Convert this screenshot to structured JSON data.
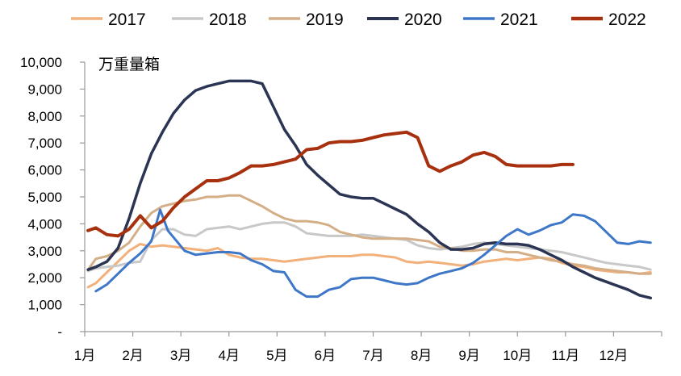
{
  "chart_data": {
    "type": "line",
    "unit_label": "万重量箱",
    "ylim": [
      0,
      10000
    ],
    "y_ticks": [
      "-",
      "1,000",
      "2,000",
      "3,000",
      "4,000",
      "5,000",
      "6,000",
      "7,000",
      "8,000",
      "9,000",
      "10,000"
    ],
    "x_labels": [
      "1月",
      "2月",
      "3月",
      "4月",
      "5月",
      "6月",
      "7月",
      "8月",
      "9月",
      "10月",
      "11月",
      "12月"
    ],
    "xlim_weeks": [
      0,
      52
    ],
    "grid": false,
    "legend_position": "top",
    "series": [
      {
        "name": "2017",
        "color": "#F2B07B",
        "width": 3,
        "points": [
          [
            0.3,
            1650
          ],
          [
            1,
            1800
          ],
          [
            2,
            2200
          ],
          [
            3,
            2600
          ],
          [
            4,
            3000
          ],
          [
            5,
            3250
          ],
          [
            6,
            3150
          ],
          [
            7,
            3200
          ],
          [
            8,
            3150
          ],
          [
            9,
            3100
          ],
          [
            10,
            3050
          ],
          [
            11,
            3000
          ],
          [
            12,
            3100
          ],
          [
            13,
            2850
          ],
          [
            14,
            2750
          ],
          [
            15,
            2700
          ],
          [
            16,
            2700
          ],
          [
            17,
            2650
          ],
          [
            18,
            2600
          ],
          [
            19,
            2650
          ],
          [
            20,
            2700
          ],
          [
            21,
            2750
          ],
          [
            22,
            2800
          ],
          [
            23,
            2800
          ],
          [
            24,
            2800
          ],
          [
            25,
            2850
          ],
          [
            26,
            2850
          ],
          [
            27,
            2800
          ],
          [
            28,
            2750
          ],
          [
            29,
            2600
          ],
          [
            30,
            2550
          ],
          [
            31,
            2600
          ],
          [
            32,
            2550
          ],
          [
            33,
            2500
          ],
          [
            34,
            2450
          ],
          [
            35,
            2500
          ],
          [
            36,
            2600
          ],
          [
            37,
            2650
          ],
          [
            38,
            2700
          ],
          [
            39,
            2650
          ],
          [
            40,
            2700
          ],
          [
            41,
            2750
          ],
          [
            42,
            2700
          ],
          [
            43,
            2550
          ],
          [
            44,
            2450
          ],
          [
            45,
            2400
          ],
          [
            46,
            2300
          ],
          [
            47,
            2250
          ],
          [
            48,
            2200
          ],
          [
            49,
            2200
          ],
          [
            50,
            2150
          ],
          [
            51,
            2200
          ]
        ]
      },
      {
        "name": "2018",
        "color": "#C8C8C8",
        "width": 3,
        "points": [
          [
            0.3,
            2250
          ],
          [
            1,
            2350
          ],
          [
            2,
            2400
          ],
          [
            3,
            2450
          ],
          [
            4,
            2550
          ],
          [
            5,
            2600
          ],
          [
            6,
            3400
          ],
          [
            7,
            3800
          ],
          [
            8,
            3800
          ],
          [
            9,
            3600
          ],
          [
            10,
            3550
          ],
          [
            11,
            3800
          ],
          [
            12,
            3850
          ],
          [
            13,
            3900
          ],
          [
            14,
            3800
          ],
          [
            15,
            3900
          ],
          [
            16,
            4000
          ],
          [
            17,
            4050
          ],
          [
            18,
            4050
          ],
          [
            19,
            3900
          ],
          [
            20,
            3650
          ],
          [
            21,
            3600
          ],
          [
            22,
            3550
          ],
          [
            23,
            3550
          ],
          [
            24,
            3550
          ],
          [
            25,
            3600
          ],
          [
            26,
            3550
          ],
          [
            27,
            3500
          ],
          [
            28,
            3450
          ],
          [
            29,
            3400
          ],
          [
            30,
            3200
          ],
          [
            31,
            3100
          ],
          [
            32,
            3050
          ],
          [
            33,
            3100
          ],
          [
            34,
            3150
          ],
          [
            35,
            3250
          ],
          [
            36,
            3300
          ],
          [
            37,
            3250
          ],
          [
            38,
            3200
          ],
          [
            39,
            3150
          ],
          [
            40,
            3100
          ],
          [
            41,
            3050
          ],
          [
            42,
            3000
          ],
          [
            43,
            2950
          ],
          [
            44,
            2850
          ],
          [
            45,
            2750
          ],
          [
            46,
            2650
          ],
          [
            47,
            2550
          ],
          [
            48,
            2500
          ],
          [
            49,
            2450
          ],
          [
            50,
            2400
          ],
          [
            51,
            2300
          ]
        ]
      },
      {
        "name": "2019",
        "color": "#D4AE86",
        "width": 3,
        "points": [
          [
            0.3,
            2300
          ],
          [
            1,
            2700
          ],
          [
            2,
            2800
          ],
          [
            3,
            3000
          ],
          [
            4,
            3300
          ],
          [
            5,
            3900
          ],
          [
            6,
            4400
          ],
          [
            7,
            4650
          ],
          [
            8,
            4750
          ],
          [
            9,
            4850
          ],
          [
            10,
            4900
          ],
          [
            11,
            5000
          ],
          [
            12,
            5000
          ],
          [
            13,
            5050
          ],
          [
            14,
            5050
          ],
          [
            15,
            4850
          ],
          [
            16,
            4650
          ],
          [
            17,
            4400
          ],
          [
            18,
            4200
          ],
          [
            19,
            4100
          ],
          [
            20,
            4100
          ],
          [
            21,
            4050
          ],
          [
            22,
            3950
          ],
          [
            23,
            3700
          ],
          [
            24,
            3600
          ],
          [
            25,
            3500
          ],
          [
            26,
            3450
          ],
          [
            27,
            3450
          ],
          [
            28,
            3450
          ],
          [
            29,
            3450
          ],
          [
            30,
            3400
          ],
          [
            31,
            3350
          ],
          [
            32,
            3150
          ],
          [
            33,
            3100
          ],
          [
            34,
            3000
          ],
          [
            35,
            3000
          ],
          [
            36,
            3050
          ],
          [
            37,
            3050
          ],
          [
            38,
            2950
          ],
          [
            39,
            2950
          ],
          [
            40,
            2850
          ],
          [
            41,
            2750
          ],
          [
            42,
            2650
          ],
          [
            43,
            2600
          ],
          [
            44,
            2500
          ],
          [
            45,
            2450
          ],
          [
            46,
            2350
          ],
          [
            47,
            2300
          ],
          [
            48,
            2250
          ],
          [
            49,
            2200
          ],
          [
            50,
            2150
          ],
          [
            51,
            2150
          ]
        ]
      },
      {
        "name": "2020",
        "color": "#2B3553",
        "width": 3.5,
        "points": [
          [
            0.3,
            2300
          ],
          [
            1,
            2400
          ],
          [
            2,
            2600
          ],
          [
            3,
            3100
          ],
          [
            4,
            4200
          ],
          [
            5,
            5500
          ],
          [
            6,
            6600
          ],
          [
            7,
            7400
          ],
          [
            8,
            8100
          ],
          [
            9,
            8600
          ],
          [
            10,
            8950
          ],
          [
            11,
            9100
          ],
          [
            12,
            9200
          ],
          [
            13,
            9300
          ],
          [
            14,
            9300
          ],
          [
            15,
            9300
          ],
          [
            16,
            9200
          ],
          [
            17,
            8350
          ],
          [
            18,
            7500
          ],
          [
            19,
            6900
          ],
          [
            20,
            6200
          ],
          [
            21,
            5800
          ],
          [
            22,
            5450
          ],
          [
            23,
            5100
          ],
          [
            24,
            5000
          ],
          [
            25,
            4950
          ],
          [
            26,
            4950
          ],
          [
            27,
            4750
          ],
          [
            28,
            4550
          ],
          [
            29,
            4350
          ],
          [
            30,
            4000
          ],
          [
            31,
            3700
          ],
          [
            32,
            3300
          ],
          [
            33,
            3050
          ],
          [
            34,
            3050
          ],
          [
            35,
            3100
          ],
          [
            36,
            3250
          ],
          [
            37,
            3300
          ],
          [
            38,
            3250
          ],
          [
            39,
            3250
          ],
          [
            40,
            3200
          ],
          [
            41,
            3050
          ],
          [
            42,
            2850
          ],
          [
            43,
            2650
          ],
          [
            44,
            2400
          ],
          [
            45,
            2200
          ],
          [
            46,
            2000
          ],
          [
            47,
            1850
          ],
          [
            48,
            1700
          ],
          [
            49,
            1550
          ],
          [
            50,
            1350
          ],
          [
            51,
            1250
          ]
        ]
      },
      {
        "name": "2021",
        "color": "#3E77C8",
        "width": 3,
        "points": [
          [
            1,
            1500
          ],
          [
            2,
            1750
          ],
          [
            3,
            2150
          ],
          [
            4,
            2550
          ],
          [
            5,
            2900
          ],
          [
            6,
            3350
          ],
          [
            6.8,
            4520
          ],
          [
            7.5,
            3750
          ],
          [
            8,
            3500
          ],
          [
            9,
            3000
          ],
          [
            10,
            2850
          ],
          [
            11,
            2900
          ],
          [
            12,
            2950
          ],
          [
            13,
            2950
          ],
          [
            14,
            2900
          ],
          [
            15,
            2650
          ],
          [
            16,
            2500
          ],
          [
            17,
            2250
          ],
          [
            18,
            2200
          ],
          [
            19,
            1550
          ],
          [
            20,
            1300
          ],
          [
            21,
            1300
          ],
          [
            22,
            1550
          ],
          [
            23,
            1650
          ],
          [
            24,
            1950
          ],
          [
            25,
            2000
          ],
          [
            26,
            2000
          ],
          [
            27,
            1900
          ],
          [
            28,
            1800
          ],
          [
            29,
            1750
          ],
          [
            30,
            1800
          ],
          [
            31,
            2000
          ],
          [
            32,
            2150
          ],
          [
            33,
            2250
          ],
          [
            34,
            2350
          ],
          [
            35,
            2550
          ],
          [
            36,
            2850
          ],
          [
            37,
            3200
          ],
          [
            38,
            3550
          ],
          [
            39,
            3800
          ],
          [
            40,
            3600
          ],
          [
            41,
            3750
          ],
          [
            42,
            3950
          ],
          [
            43,
            4050
          ],
          [
            44,
            4350
          ],
          [
            45,
            4300
          ],
          [
            46,
            4100
          ],
          [
            47,
            3700
          ],
          [
            48,
            3300
          ],
          [
            49,
            3250
          ],
          [
            50,
            3350
          ],
          [
            51,
            3300
          ]
        ]
      },
      {
        "name": "2022",
        "color": "#A7300F",
        "width": 4,
        "points": [
          [
            0.3,
            3750
          ],
          [
            1,
            3850
          ],
          [
            2,
            3600
          ],
          [
            3,
            3550
          ],
          [
            4,
            3800
          ],
          [
            5,
            4300
          ],
          [
            6,
            3850
          ],
          [
            7,
            4100
          ],
          [
            8,
            4600
          ],
          [
            9,
            5000
          ],
          [
            10,
            5300
          ],
          [
            11,
            5600
          ],
          [
            12,
            5600
          ],
          [
            13,
            5700
          ],
          [
            14,
            5900
          ],
          [
            15,
            6150
          ],
          [
            16,
            6150
          ],
          [
            17,
            6200
          ],
          [
            18,
            6300
          ],
          [
            19,
            6400
          ],
          [
            20,
            6750
          ],
          [
            21,
            6800
          ],
          [
            22,
            7000
          ],
          [
            23,
            7050
          ],
          [
            24,
            7050
          ],
          [
            25,
            7100
          ],
          [
            26,
            7200
          ],
          [
            27,
            7300
          ],
          [
            28,
            7350
          ],
          [
            29,
            7400
          ],
          [
            30,
            7200
          ],
          [
            31,
            6150
          ],
          [
            32,
            5950
          ],
          [
            33,
            6150
          ],
          [
            34,
            6300
          ],
          [
            35,
            6550
          ],
          [
            36,
            6650
          ],
          [
            37,
            6500
          ],
          [
            38,
            6200
          ],
          [
            39,
            6150
          ],
          [
            40,
            6150
          ],
          [
            41,
            6150
          ],
          [
            42,
            6150
          ],
          [
            43,
            6200
          ],
          [
            44,
            6200
          ]
        ]
      }
    ]
  }
}
